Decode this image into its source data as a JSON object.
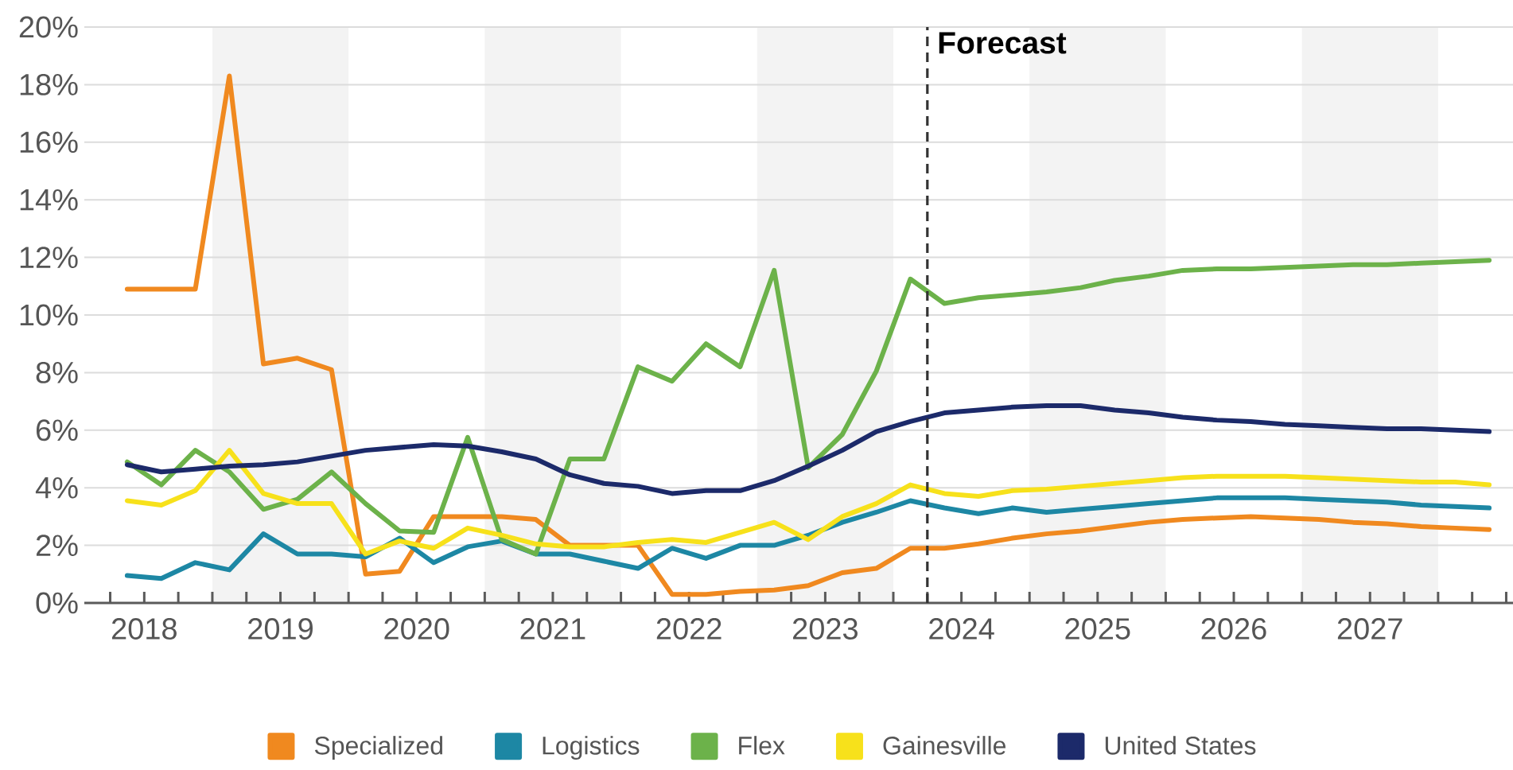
{
  "chart_data": {
    "type": "line",
    "x": [
      2018.375,
      2018.625,
      2018.875,
      2019.125,
      2019.375,
      2019.625,
      2019.875,
      2020.125,
      2020.375,
      2020.625,
      2020.875,
      2021.125,
      2021.375,
      2021.625,
      2021.875,
      2022.125,
      2022.375,
      2022.625,
      2022.875,
      2023.125,
      2023.375,
      2023.625,
      2023.875,
      2024.125,
      2024.375,
      2024.625,
      2024.875,
      2025.125,
      2025.375,
      2025.625,
      2025.875,
      2026.125,
      2026.375,
      2026.625,
      2026.875,
      2027.125,
      2027.375,
      2027.625,
      2027.875,
      2028.125,
      2028.375
    ],
    "xlim": [
      2018.06,
      2028.55
    ],
    "ylim": [
      0,
      20
    ],
    "xticks": [
      {
        "value": 2018.25,
        "label": null
      },
      {
        "value": 2018.5,
        "label": "2018"
      },
      {
        "value": 2018.75,
        "label": null
      },
      {
        "value": 2019,
        "label": null
      },
      {
        "value": 2019.25,
        "label": null
      },
      {
        "value": 2019.5,
        "label": "2019"
      },
      {
        "value": 2019.75,
        "label": null
      },
      {
        "value": 2020,
        "label": null
      },
      {
        "value": 2020.25,
        "label": null
      },
      {
        "value": 2020.5,
        "label": "2020"
      },
      {
        "value": 2020.75,
        "label": null
      },
      {
        "value": 2021,
        "label": null
      },
      {
        "value": 2021.25,
        "label": null
      },
      {
        "value": 2021.5,
        "label": "2021"
      },
      {
        "value": 2021.75,
        "label": null
      },
      {
        "value": 2022,
        "label": null
      },
      {
        "value": 2022.25,
        "label": null
      },
      {
        "value": 2022.5,
        "label": "2022"
      },
      {
        "value": 2022.75,
        "label": null
      },
      {
        "value": 2023,
        "label": null
      },
      {
        "value": 2023.25,
        "label": null
      },
      {
        "value": 2023.5,
        "label": "2023"
      },
      {
        "value": 2023.75,
        "label": null
      },
      {
        "value": 2024,
        "label": null
      },
      {
        "value": 2024.25,
        "label": null
      },
      {
        "value": 2024.5,
        "label": "2024"
      },
      {
        "value": 2024.75,
        "label": null
      },
      {
        "value": 2025,
        "label": null
      },
      {
        "value": 2025.25,
        "label": null
      },
      {
        "value": 2025.5,
        "label": "2025"
      },
      {
        "value": 2025.75,
        "label": null
      },
      {
        "value": 2026,
        "label": null
      },
      {
        "value": 2026.25,
        "label": null
      },
      {
        "value": 2026.5,
        "label": "2026"
      },
      {
        "value": 2026.75,
        "label": null
      },
      {
        "value": 2027,
        "label": null
      },
      {
        "value": 2027.25,
        "label": null
      },
      {
        "value": 2027.5,
        "label": "2027"
      },
      {
        "value": 2027.75,
        "label": null
      },
      {
        "value": 2028,
        "label": null
      },
      {
        "value": 2028.25,
        "label": null
      },
      {
        "value": 2028.5,
        "label": null
      }
    ],
    "yticks": [
      {
        "value": 0,
        "label": "0%"
      },
      {
        "value": 2,
        "label": "2%"
      },
      {
        "value": 4,
        "label": "4%"
      },
      {
        "value": 6,
        "label": "6%"
      },
      {
        "value": 8,
        "label": "8%"
      },
      {
        "value": 10,
        "label": "10%"
      },
      {
        "value": 12,
        "label": "12%"
      },
      {
        "value": 14,
        "label": "14%"
      },
      {
        "value": 16,
        "label": "16%"
      },
      {
        "value": 18,
        "label": "18%"
      },
      {
        "value": 20,
        "label": "20%"
      }
    ],
    "grid": "y",
    "legend": "bottom",
    "line_style": "solid",
    "series": [
      {
        "name": "Specialized",
        "color": "#f0891f",
        "values": [
          10.9,
          10.9,
          10.9,
          18.3,
          8.3,
          8.5,
          8.1,
          1.0,
          1.1,
          3.0,
          3.0,
          3.0,
          2.9,
          2.0,
          2.0,
          2.0,
          0.3,
          0.3,
          0.4,
          0.45,
          0.6,
          1.05,
          1.2,
          1.9,
          1.9,
          2.05,
          2.25,
          2.4,
          2.5,
          2.65,
          2.8,
          2.9,
          2.95,
          3.0,
          2.95,
          2.9,
          2.8,
          2.75,
          2.65,
          2.6,
          2.55
        ]
      },
      {
        "name": "Logistics",
        "color": "#1d87a4",
        "values": [
          0.95,
          0.85,
          1.4,
          1.15,
          2.4,
          1.7,
          1.7,
          1.6,
          2.25,
          1.4,
          1.95,
          2.15,
          1.7,
          1.7,
          1.45,
          1.2,
          1.9,
          1.55,
          2.0,
          2.0,
          2.35,
          2.8,
          3.15,
          3.55,
          3.3,
          3.1,
          3.3,
          3.15,
          3.25,
          3.35,
          3.45,
          3.55,
          3.65,
          3.65,
          3.65,
          3.6,
          3.55,
          3.5,
          3.4,
          3.35,
          3.3
        ]
      },
      {
        "name": "Flex",
        "color": "#6cb24a",
        "values": [
          4.9,
          4.1,
          5.3,
          4.55,
          3.25,
          3.6,
          4.55,
          3.45,
          2.5,
          2.45,
          5.75,
          2.2,
          1.7,
          5.0,
          5.0,
          8.2,
          7.7,
          9.0,
          8.2,
          11.55,
          4.7,
          5.85,
          8.05,
          11.25,
          10.4,
          10.6,
          10.7,
          10.8,
          10.95,
          11.2,
          11.35,
          11.55,
          11.6,
          11.6,
          11.65,
          11.7,
          11.75,
          11.75,
          11.8,
          11.85,
          11.9
        ]
      },
      {
        "name": "Gainesville",
        "color": "#f7e11b",
        "values": [
          3.55,
          3.4,
          3.9,
          5.3,
          3.8,
          3.45,
          3.45,
          1.7,
          2.15,
          1.9,
          2.6,
          2.35,
          2.05,
          1.95,
          1.95,
          2.1,
          2.2,
          2.1,
          2.45,
          2.8,
          2.2,
          3.0,
          3.45,
          4.1,
          3.8,
          3.7,
          3.9,
          3.95,
          4.05,
          4.15,
          4.25,
          4.35,
          4.4,
          4.4,
          4.4,
          4.35,
          4.3,
          4.25,
          4.2,
          4.2,
          4.1
        ]
      },
      {
        "name": "United States",
        "color": "#1c2a6a",
        "values": [
          4.8,
          4.55,
          4.65,
          4.75,
          4.8,
          4.9,
          5.1,
          5.3,
          5.4,
          5.5,
          5.45,
          5.25,
          5.0,
          4.45,
          4.15,
          4.05,
          3.8,
          3.9,
          3.9,
          4.25,
          4.75,
          5.3,
          5.95,
          6.3,
          6.6,
          6.7,
          6.8,
          6.85,
          6.85,
          6.7,
          6.6,
          6.45,
          6.35,
          6.3,
          6.2,
          6.15,
          6.1,
          6.05,
          6.05,
          6.0,
          5.95
        ]
      }
    ],
    "ref_lines": [
      {
        "axis": "x",
        "value": 2024.25,
        "label": "Forecast",
        "line_style": "dashed",
        "color": "#333333"
      }
    ],
    "bands": [
      {
        "axis": "x",
        "from": 2019,
        "to": 2020,
        "color": "#f3f3f3"
      },
      {
        "axis": "x",
        "from": 2021,
        "to": 2022,
        "color": "#f3f3f3"
      },
      {
        "axis": "x",
        "from": 2023,
        "to": 2024,
        "color": "#f3f3f3"
      },
      {
        "axis": "x",
        "from": 2025,
        "to": 2026,
        "color": "#f3f3f3"
      },
      {
        "axis": "x",
        "from": 2027,
        "to": 2028,
        "color": "#f3f3f3"
      }
    ]
  }
}
